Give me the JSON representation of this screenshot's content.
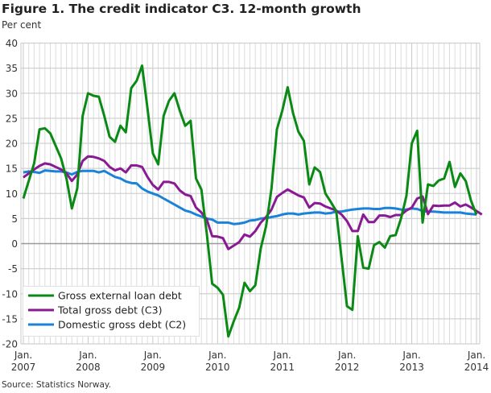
{
  "chart_data": {
    "type": "line",
    "title": "Figure 1. The credit indicator C3. 12-month growth",
    "ylabel": "Per cent",
    "source": "Source: Statistics Norway.",
    "ylim": [
      -20,
      40
    ],
    "yticks": [
      40,
      35,
      30,
      25,
      20,
      15,
      10,
      5,
      0,
      -5,
      -10,
      -15,
      -20
    ],
    "x_start": "Jan. 2007",
    "x_end": "Jan. 2014",
    "frequency": "monthly",
    "xticks": [
      {
        "month": "Jan.",
        "year": "2007"
      },
      {
        "month": "Jan.",
        "year": "2008"
      },
      {
        "month": "Jan.",
        "year": "2009"
      },
      {
        "month": "Jan.",
        "year": "2010"
      },
      {
        "month": "Jan.",
        "year": "2011"
      },
      {
        "month": "Jan.",
        "year": "2012"
      },
      {
        "month": "Jan.",
        "year": "2013"
      },
      {
        "month": "Jan.",
        "year": "2014"
      }
    ],
    "grid": true,
    "legend_position": "bottom-left",
    "series": [
      {
        "name": "Gross external loan debt",
        "color": "#0a8a14",
        "values": [
          9,
          12.5,
          16,
          22.8,
          23,
          22,
          19.5,
          17,
          13,
          7,
          11,
          25.5,
          30,
          29.5,
          29.3,
          25.5,
          21.3,
          20.3,
          23.5,
          22.2,
          31,
          32.5,
          35.5,
          27,
          18,
          15.8,
          25.5,
          28.5,
          30,
          26.5,
          23.5,
          24.5,
          13,
          10.8,
          2,
          -8,
          -8.8,
          -10.2,
          -18.5,
          -15.5,
          -12.8,
          -7.8,
          -9.5,
          -8.3,
          -1,
          3.5,
          11,
          22.8,
          26.5,
          31.2,
          26,
          22.3,
          20.5,
          11.8,
          15.2,
          14.3,
          10,
          8.3,
          6.5,
          -3,
          -12.5,
          -13.2,
          1.5,
          -4.8,
          -5,
          -0.3,
          0.3,
          -0.8,
          1.5,
          1.7,
          5,
          9.5,
          20,
          22.5,
          4.2,
          11.8,
          11.5,
          12.6,
          13,
          16.3,
          11.3,
          14,
          12.5,
          8.5,
          5.8
        ]
      },
      {
        "name": "Total gross debt (C3)",
        "color": "#8a1a94",
        "values": [
          13.2,
          14,
          14.8,
          15.5,
          16,
          15.8,
          15.3,
          14.8,
          14,
          12.5,
          13.8,
          16.5,
          17.4,
          17.3,
          17,
          16.5,
          15.3,
          14.6,
          15,
          14.2,
          15.6,
          15.6,
          15.3,
          13.3,
          11.7,
          10.8,
          12.3,
          12.3,
          12,
          10.6,
          9.8,
          9.5,
          7.2,
          6.2,
          4.8,
          1.5,
          1.4,
          1.1,
          -1.1,
          -0.4,
          0.3,
          1.8,
          1.4,
          2.5,
          4.2,
          5.3,
          6.8,
          9.3,
          10.1,
          10.8,
          10.2,
          9.6,
          9.2,
          7.2,
          8.1,
          8,
          7.4,
          7,
          6.6,
          5.8,
          4.5,
          2.5,
          2.5,
          5.8,
          4.3,
          4.3,
          5.6,
          5.6,
          5.3,
          5.7,
          5.7,
          6.6,
          7.2,
          9,
          9.4,
          5.9,
          7.6,
          7.5,
          7.6,
          7.6,
          8.2,
          7.4,
          7.8,
          7.2,
          6.5,
          5.8
        ]
      },
      {
        "name": "Domestic gross debt (C2)",
        "color": "#1a82d8",
        "values": [
          14.2,
          14.4,
          14.3,
          14.1,
          14.6,
          14.5,
          14.4,
          14.4,
          14.2,
          13.8,
          14.3,
          14.5,
          14.5,
          14.5,
          14.2,
          14.5,
          13.9,
          13.3,
          13,
          12.4,
          12.1,
          12,
          11,
          10.4,
          10,
          9.6,
          9,
          8.4,
          7.8,
          7.2,
          6.6,
          6.3,
          5.8,
          5.4,
          5,
          4.8,
          4.2,
          4.2,
          4.2,
          3.9,
          4,
          4.2,
          4.6,
          4.7,
          5,
          5.1,
          5.3,
          5.5,
          5.8,
          6,
          6,
          5.8,
          6,
          6.1,
          6.2,
          6.2,
          6,
          6.1,
          6.4,
          6.4,
          6.6,
          6.8,
          6.9,
          7,
          7,
          6.9,
          6.9,
          7.1,
          7.1,
          7,
          6.8,
          6.8,
          7,
          6.9,
          6.5,
          6.4,
          6.4,
          6.3,
          6.2,
          6.2,
          6.2,
          6.2,
          6,
          5.9,
          5.8
        ]
      }
    ]
  }
}
